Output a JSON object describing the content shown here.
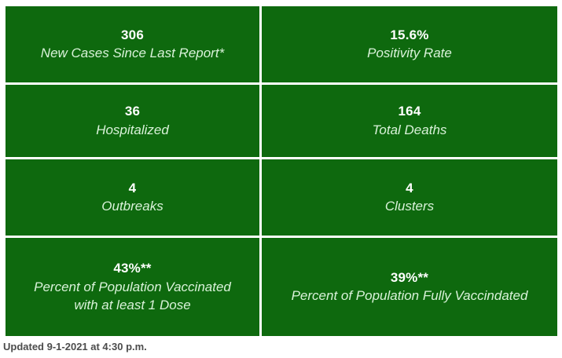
{
  "colors": {
    "page_bg": "#ffffff",
    "cell_bg": "#0e690e",
    "divider": "#ffffff",
    "value_text": "#ffffff",
    "label_text": "#d9f2d9",
    "footer_text": "#4c4c4c"
  },
  "stats": [
    {
      "value": "306",
      "label": "New Cases Since Last Report*"
    },
    {
      "value": "15.6%",
      "label": "Positivity Rate"
    },
    {
      "value": "36",
      "label": "Hospitalized"
    },
    {
      "value": "164",
      "label": "Total Deaths"
    },
    {
      "value": "4",
      "label": "Outbreaks"
    },
    {
      "value": "4",
      "label": "Clusters"
    },
    {
      "value": "43%**",
      "label": "Percent of Population Vaccinated with at least 1 Dose"
    },
    {
      "value": "39%**",
      "label": "Percent of Population Fully Vaccindated"
    }
  ],
  "footer": {
    "updated": "Updated 9-1-2021 at 4:30 p.m."
  },
  "chart_data": {
    "type": "table",
    "columns": [
      "value",
      "label"
    ],
    "rows": [
      [
        "306",
        "New Cases Since Last Report*"
      ],
      [
        "15.6%",
        "Positivity Rate"
      ],
      [
        "36",
        "Hospitalized"
      ],
      [
        "164",
        "Total Deaths"
      ],
      [
        "4",
        "Outbreaks"
      ],
      [
        "4",
        "Clusters"
      ],
      [
        "43%**",
        "Percent of Population Vaccinated with at least 1 Dose"
      ],
      [
        "39%**",
        "Percent of Population Fully Vaccindated"
      ]
    ],
    "layout": "4 rows x 2 columns grid of green stat tiles separated by white dividers",
    "footnote": "Updated 9-1-2021 at 4:30 p.m."
  }
}
